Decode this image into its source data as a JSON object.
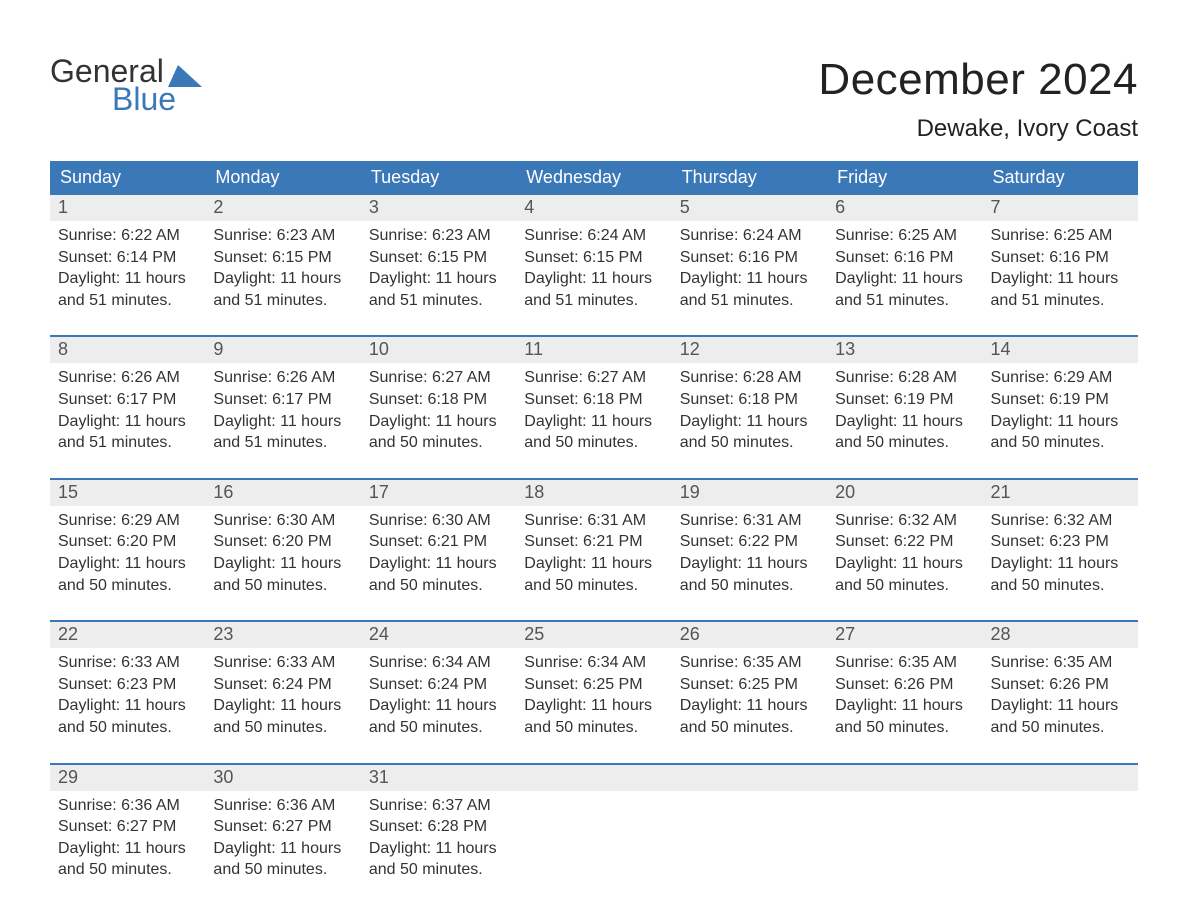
{
  "logo": {
    "word1": "General",
    "word2": "Blue",
    "accent_color": "#3b78b8"
  },
  "title": "December 2024",
  "location": "Dewake, Ivory Coast",
  "colors": {
    "header_bg": "#3b78b8",
    "header_text": "#ffffff",
    "daynum_bg": "#ededed",
    "daynum_text": "#555555",
    "body_text": "#333333",
    "week_border": "#3b78b8",
    "page_bg": "#ffffff"
  },
  "weekdays": [
    "Sunday",
    "Monday",
    "Tuesday",
    "Wednesday",
    "Thursday",
    "Friday",
    "Saturday"
  ],
  "weeks": [
    [
      {
        "n": "1",
        "sr": "Sunrise: 6:22 AM",
        "ss": "Sunset: 6:14 PM",
        "d1": "Daylight: 11 hours",
        "d2": "and 51 minutes."
      },
      {
        "n": "2",
        "sr": "Sunrise: 6:23 AM",
        "ss": "Sunset: 6:15 PM",
        "d1": "Daylight: 11 hours",
        "d2": "and 51 minutes."
      },
      {
        "n": "3",
        "sr": "Sunrise: 6:23 AM",
        "ss": "Sunset: 6:15 PM",
        "d1": "Daylight: 11 hours",
        "d2": "and 51 minutes."
      },
      {
        "n": "4",
        "sr": "Sunrise: 6:24 AM",
        "ss": "Sunset: 6:15 PM",
        "d1": "Daylight: 11 hours",
        "d2": "and 51 minutes."
      },
      {
        "n": "5",
        "sr": "Sunrise: 6:24 AM",
        "ss": "Sunset: 6:16 PM",
        "d1": "Daylight: 11 hours",
        "d2": "and 51 minutes."
      },
      {
        "n": "6",
        "sr": "Sunrise: 6:25 AM",
        "ss": "Sunset: 6:16 PM",
        "d1": "Daylight: 11 hours",
        "d2": "and 51 minutes."
      },
      {
        "n": "7",
        "sr": "Sunrise: 6:25 AM",
        "ss": "Sunset: 6:16 PM",
        "d1": "Daylight: 11 hours",
        "d2": "and 51 minutes."
      }
    ],
    [
      {
        "n": "8",
        "sr": "Sunrise: 6:26 AM",
        "ss": "Sunset: 6:17 PM",
        "d1": "Daylight: 11 hours",
        "d2": "and 51 minutes."
      },
      {
        "n": "9",
        "sr": "Sunrise: 6:26 AM",
        "ss": "Sunset: 6:17 PM",
        "d1": "Daylight: 11 hours",
        "d2": "and 51 minutes."
      },
      {
        "n": "10",
        "sr": "Sunrise: 6:27 AM",
        "ss": "Sunset: 6:18 PM",
        "d1": "Daylight: 11 hours",
        "d2": "and 50 minutes."
      },
      {
        "n": "11",
        "sr": "Sunrise: 6:27 AM",
        "ss": "Sunset: 6:18 PM",
        "d1": "Daylight: 11 hours",
        "d2": "and 50 minutes."
      },
      {
        "n": "12",
        "sr": "Sunrise: 6:28 AM",
        "ss": "Sunset: 6:18 PM",
        "d1": "Daylight: 11 hours",
        "d2": "and 50 minutes."
      },
      {
        "n": "13",
        "sr": "Sunrise: 6:28 AM",
        "ss": "Sunset: 6:19 PM",
        "d1": "Daylight: 11 hours",
        "d2": "and 50 minutes."
      },
      {
        "n": "14",
        "sr": "Sunrise: 6:29 AM",
        "ss": "Sunset: 6:19 PM",
        "d1": "Daylight: 11 hours",
        "d2": "and 50 minutes."
      }
    ],
    [
      {
        "n": "15",
        "sr": "Sunrise: 6:29 AM",
        "ss": "Sunset: 6:20 PM",
        "d1": "Daylight: 11 hours",
        "d2": "and 50 minutes."
      },
      {
        "n": "16",
        "sr": "Sunrise: 6:30 AM",
        "ss": "Sunset: 6:20 PM",
        "d1": "Daylight: 11 hours",
        "d2": "and 50 minutes."
      },
      {
        "n": "17",
        "sr": "Sunrise: 6:30 AM",
        "ss": "Sunset: 6:21 PM",
        "d1": "Daylight: 11 hours",
        "d2": "and 50 minutes."
      },
      {
        "n": "18",
        "sr": "Sunrise: 6:31 AM",
        "ss": "Sunset: 6:21 PM",
        "d1": "Daylight: 11 hours",
        "d2": "and 50 minutes."
      },
      {
        "n": "19",
        "sr": "Sunrise: 6:31 AM",
        "ss": "Sunset: 6:22 PM",
        "d1": "Daylight: 11 hours",
        "d2": "and 50 minutes."
      },
      {
        "n": "20",
        "sr": "Sunrise: 6:32 AM",
        "ss": "Sunset: 6:22 PM",
        "d1": "Daylight: 11 hours",
        "d2": "and 50 minutes."
      },
      {
        "n": "21",
        "sr": "Sunrise: 6:32 AM",
        "ss": "Sunset: 6:23 PM",
        "d1": "Daylight: 11 hours",
        "d2": "and 50 minutes."
      }
    ],
    [
      {
        "n": "22",
        "sr": "Sunrise: 6:33 AM",
        "ss": "Sunset: 6:23 PM",
        "d1": "Daylight: 11 hours",
        "d2": "and 50 minutes."
      },
      {
        "n": "23",
        "sr": "Sunrise: 6:33 AM",
        "ss": "Sunset: 6:24 PM",
        "d1": "Daylight: 11 hours",
        "d2": "and 50 minutes."
      },
      {
        "n": "24",
        "sr": "Sunrise: 6:34 AM",
        "ss": "Sunset: 6:24 PM",
        "d1": "Daylight: 11 hours",
        "d2": "and 50 minutes."
      },
      {
        "n": "25",
        "sr": "Sunrise: 6:34 AM",
        "ss": "Sunset: 6:25 PM",
        "d1": "Daylight: 11 hours",
        "d2": "and 50 minutes."
      },
      {
        "n": "26",
        "sr": "Sunrise: 6:35 AM",
        "ss": "Sunset: 6:25 PM",
        "d1": "Daylight: 11 hours",
        "d2": "and 50 minutes."
      },
      {
        "n": "27",
        "sr": "Sunrise: 6:35 AM",
        "ss": "Sunset: 6:26 PM",
        "d1": "Daylight: 11 hours",
        "d2": "and 50 minutes."
      },
      {
        "n": "28",
        "sr": "Sunrise: 6:35 AM",
        "ss": "Sunset: 6:26 PM",
        "d1": "Daylight: 11 hours",
        "d2": "and 50 minutes."
      }
    ],
    [
      {
        "n": "29",
        "sr": "Sunrise: 6:36 AM",
        "ss": "Sunset: 6:27 PM",
        "d1": "Daylight: 11 hours",
        "d2": "and 50 minutes."
      },
      {
        "n": "30",
        "sr": "Sunrise: 6:36 AM",
        "ss": "Sunset: 6:27 PM",
        "d1": "Daylight: 11 hours",
        "d2": "and 50 minutes."
      },
      {
        "n": "31",
        "sr": "Sunrise: 6:37 AM",
        "ss": "Sunset: 6:28 PM",
        "d1": "Daylight: 11 hours",
        "d2": "and 50 minutes."
      },
      {
        "n": "",
        "sr": "",
        "ss": "",
        "d1": "",
        "d2": ""
      },
      {
        "n": "",
        "sr": "",
        "ss": "",
        "d1": "",
        "d2": ""
      },
      {
        "n": "",
        "sr": "",
        "ss": "",
        "d1": "",
        "d2": ""
      },
      {
        "n": "",
        "sr": "",
        "ss": "",
        "d1": "",
        "d2": ""
      }
    ]
  ]
}
